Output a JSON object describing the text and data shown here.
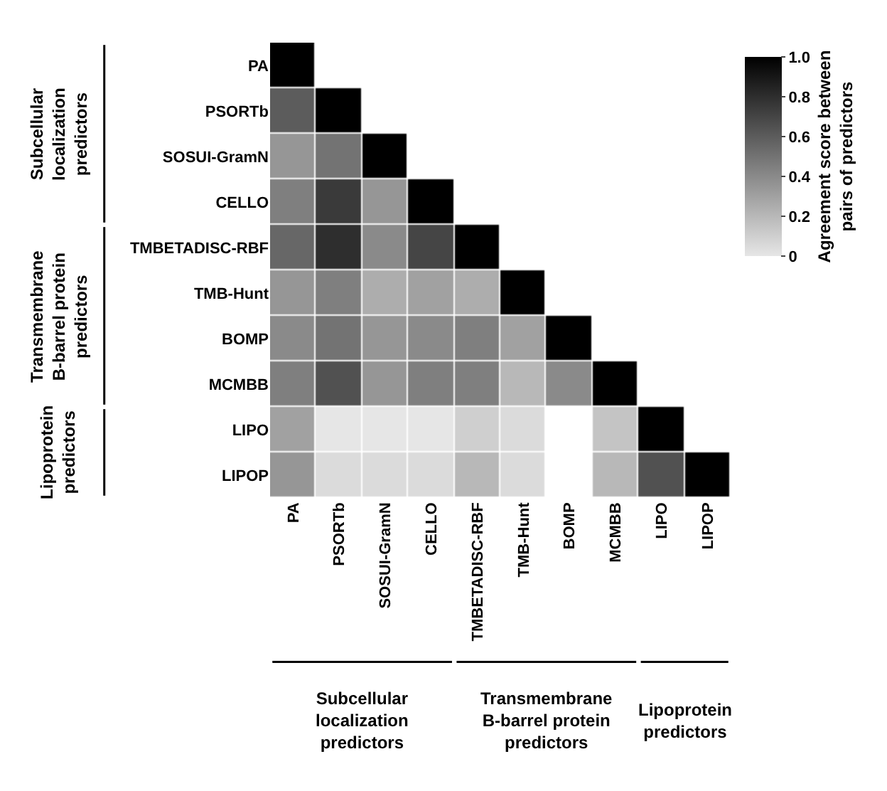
{
  "chart_data": {
    "type": "heatmap",
    "categories": [
      "PA",
      "PSORTb",
      "SOSUI-GramN",
      "CELLO",
      "TMBETADISC-RBF",
      "TMB-Hunt",
      "BOMP",
      "MCMBB",
      "LIPO",
      "LIPOP"
    ],
    "y_categories": [
      "PA",
      "PSORTb",
      "SOSUI-GramN",
      "CELLO",
      "TMBETADISC-RBF",
      "TMB-Hunt",
      "BOMP",
      "MCMBB",
      "LIPO",
      "LIPOP"
    ],
    "cells": [
      [
        1,
        null,
        null,
        null,
        null,
        null,
        null,
        null,
        null,
        null
      ],
      [
        0.6,
        1,
        null,
        null,
        null,
        null,
        null,
        null,
        null,
        null
      ],
      [
        0.35,
        0.5,
        1,
        null,
        null,
        null,
        null,
        null,
        null,
        null
      ],
      [
        0.45,
        0.75,
        0.35,
        1,
        null,
        null,
        null,
        null,
        null,
        null
      ],
      [
        0.55,
        0.8,
        0.4,
        0.7,
        1,
        null,
        null,
        null,
        null,
        null
      ],
      [
        0.35,
        0.45,
        0.25,
        0.3,
        0.25,
        1,
        null,
        null,
        null,
        null
      ],
      [
        0.4,
        0.5,
        0.35,
        0.4,
        0.45,
        0.3,
        1,
        null,
        null,
        null
      ],
      [
        0.45,
        0.65,
        0.35,
        0.45,
        0.45,
        0.2,
        0.4,
        1,
        null,
        null
      ],
      [
        0.3,
        0,
        0,
        0,
        0.1,
        0.05,
        null,
        0.15,
        1,
        null
      ],
      [
        0.35,
        0.05,
        0.05,
        0.05,
        0.2,
        0.05,
        null,
        0.2,
        0.65,
        1
      ]
    ],
    "clim": [
      0,
      1
    ],
    "cticks": [
      0,
      0.2,
      0.4,
      0.6,
      0.8,
      {
        "value": 1,
        "label": "1.0"
      }
    ],
    "clabel": "Agreement score between pairs of predictors",
    "annotations": [
      "Subcellular localization predictors",
      "Transmembrane B-barrel protein predictors",
      "Lipoprotein predictors",
      "Subcellular localization predictors",
      "Transmembrane B-barrel protein predictors",
      "Lipoprotein predictors"
    ],
    "grid": false
  }
}
